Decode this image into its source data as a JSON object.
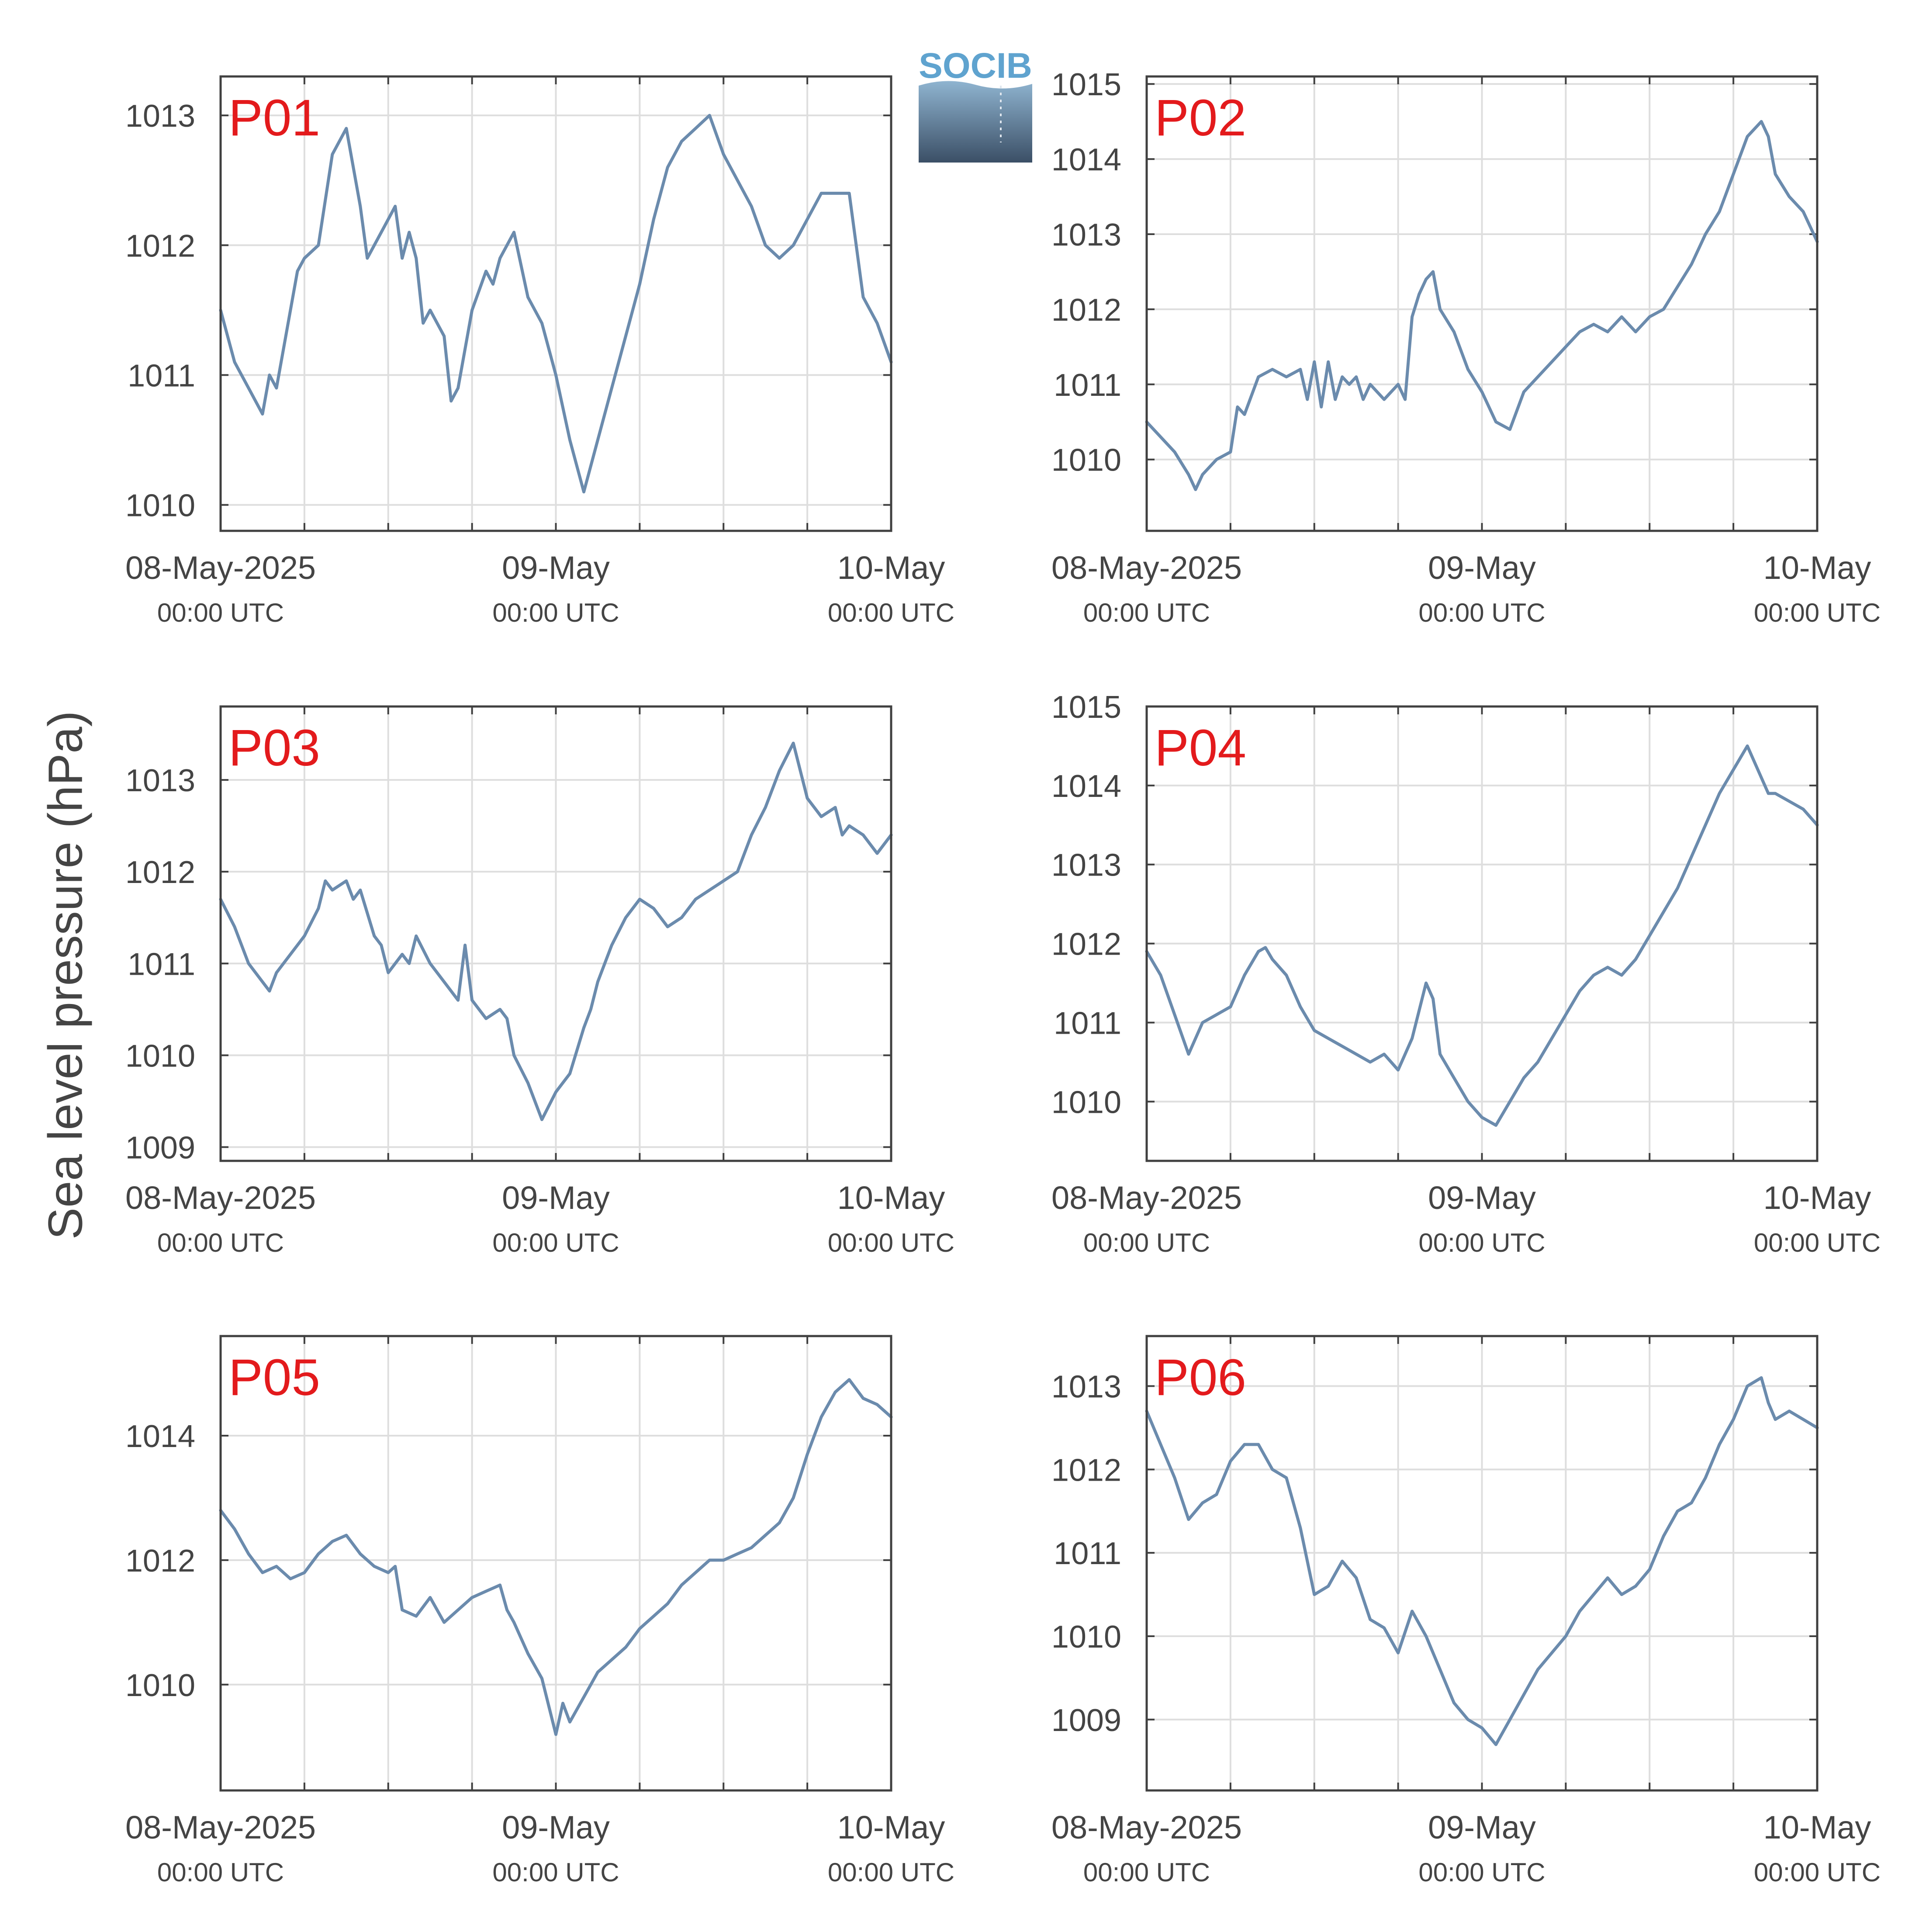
{
  "ylabel": "Sea level pressure (hPa)",
  "logo_text": "SOCIB",
  "colors": {
    "line": "#6b8bad",
    "station_label": "#e31a1c",
    "axis": "#404040",
    "grid": "#dedede",
    "text": "#444444"
  },
  "chart_data": [
    {
      "type": "line",
      "title": "P01",
      "x_ticks": [
        {
          "x": 0,
          "date": "08-May-2025",
          "time": "00:00 UTC"
        },
        {
          "x": 24,
          "date": "09-May",
          "time": "00:00 UTC"
        },
        {
          "x": 48,
          "date": "10-May",
          "time": "00:00 UTC"
        }
      ],
      "xlim": [
        0,
        48
      ],
      "ylim": [
        1009.8,
        1013.3
      ],
      "yticks": [
        1010,
        1011,
        1012,
        1013
      ],
      "grid": true,
      "x": [
        0,
        1,
        2,
        3,
        3.5,
        4,
        4.5,
        5,
        5.5,
        6,
        7,
        8,
        9,
        10,
        10.5,
        11,
        12,
        12.5,
        13,
        13.5,
        14,
        14.5,
        15,
        16,
        16.5,
        17,
        18,
        19,
        19.5,
        20,
        21,
        22,
        23,
        24,
        25,
        26,
        27,
        28,
        29,
        30,
        31,
        32,
        33,
        34,
        35,
        36,
        37,
        38,
        39,
        40,
        41,
        42,
        43,
        44,
        45,
        46,
        47,
        48
      ],
      "y": [
        1011.5,
        1011.1,
        1010.9,
        1010.7,
        1011.0,
        1010.9,
        1011.2,
        1011.5,
        1011.8,
        1011.9,
        1012.0,
        1012.7,
        1012.9,
        1012.3,
        1011.9,
        1012.0,
        1012.2,
        1012.3,
        1011.9,
        1012.1,
        1011.9,
        1011.4,
        1011.5,
        1011.3,
        1010.8,
        1010.9,
        1011.5,
        1011.8,
        1011.7,
        1011.9,
        1012.1,
        1011.6,
        1011.4,
        1011.0,
        1010.5,
        1010.1,
        1010.5,
        1010.9,
        1011.3,
        1011.7,
        1012.2,
        1012.6,
        1012.8,
        1012.9,
        1013.0,
        1012.7,
        1012.5,
        1012.3,
        1012.0,
        1011.9,
        1012.0,
        1012.2,
        1012.4,
        1012.4,
        1012.4,
        1011.6,
        1011.4,
        1011.1
      ]
    },
    {
      "type": "line",
      "title": "P02",
      "x_ticks": [
        {
          "x": 0,
          "date": "08-May-2025",
          "time": "00:00 UTC"
        },
        {
          "x": 24,
          "date": "09-May",
          "time": "00:00 UTC"
        },
        {
          "x": 48,
          "date": "10-May",
          "time": "00:00 UTC"
        }
      ],
      "xlim": [
        0,
        48
      ],
      "ylim": [
        1009.05,
        1015.1
      ],
      "yticks": [
        1010,
        1011,
        1012,
        1013,
        1014,
        1015
      ],
      "grid": true,
      "x": [
        0,
        1,
        2,
        3,
        3.5,
        4,
        5,
        6,
        6.5,
        7,
        8,
        9,
        10,
        11,
        11.5,
        12,
        12.5,
        13,
        13.5,
        14,
        14.5,
        15,
        15.5,
        16,
        17,
        18,
        18.5,
        19,
        19.5,
        20,
        20.5,
        21,
        22,
        23,
        24,
        25,
        26,
        27,
        28,
        29,
        30,
        31,
        32,
        33,
        34,
        35,
        36,
        37,
        38,
        39,
        40,
        41,
        42,
        43,
        44,
        44.5,
        45,
        46,
        47,
        48
      ],
      "y": [
        1010.5,
        1010.3,
        1010.1,
        1009.8,
        1009.6,
        1009.8,
        1010.0,
        1010.1,
        1010.7,
        1010.6,
        1011.1,
        1011.2,
        1011.1,
        1011.2,
        1010.8,
        1011.3,
        1010.7,
        1011.3,
        1010.8,
        1011.1,
        1011.0,
        1011.1,
        1010.8,
        1011.0,
        1010.8,
        1011.0,
        1010.8,
        1011.9,
        1012.2,
        1012.4,
        1012.5,
        1012.0,
        1011.7,
        1011.2,
        1010.9,
        1010.5,
        1010.4,
        1010.9,
        1011.1,
        1011.3,
        1011.5,
        1011.7,
        1011.8,
        1011.7,
        1011.9,
        1011.7,
        1011.9,
        1012.0,
        1012.3,
        1012.6,
        1013.0,
        1013.3,
        1013.8,
        1014.3,
        1014.5,
        1014.3,
        1013.8,
        1013.5,
        1013.3,
        1012.9
      ]
    },
    {
      "type": "line",
      "title": "P03",
      "x_ticks": [
        {
          "x": 0,
          "date": "08-May-2025",
          "time": "00:00 UTC"
        },
        {
          "x": 24,
          "date": "09-May",
          "time": "00:00 UTC"
        },
        {
          "x": 48,
          "date": "10-May",
          "time": "00:00 UTC"
        }
      ],
      "xlim": [
        0,
        48
      ],
      "ylim": [
        1008.85,
        1013.8
      ],
      "yticks": [
        1009,
        1010,
        1011,
        1012,
        1013
      ],
      "grid": true,
      "x": [
        0,
        1,
        2,
        3,
        3.5,
        4,
        5,
        6,
        7,
        7.5,
        8,
        9,
        9.5,
        10,
        11,
        11.5,
        12,
        13,
        13.5,
        14,
        15,
        16,
        17,
        17.5,
        18,
        19,
        20,
        20.5,
        21,
        22,
        23,
        24,
        25,
        26,
        26.5,
        27,
        28,
        29,
        30,
        31,
        32,
        33,
        34,
        35,
        36,
        37,
        38,
        39,
        40,
        41,
        42,
        43,
        44,
        44.5,
        45,
        46,
        47,
        48
      ],
      "y": [
        1011.7,
        1011.4,
        1011.0,
        1010.8,
        1010.7,
        1010.9,
        1011.1,
        1011.3,
        1011.6,
        1011.9,
        1011.8,
        1011.9,
        1011.7,
        1011.8,
        1011.3,
        1011.2,
        1010.9,
        1011.1,
        1011.0,
        1011.3,
        1011.0,
        1010.8,
        1010.6,
        1011.2,
        1010.6,
        1010.4,
        1010.5,
        1010.4,
        1010.0,
        1009.7,
        1009.3,
        1009.6,
        1009.8,
        1010.3,
        1010.5,
        1010.8,
        1011.2,
        1011.5,
        1011.7,
        1011.6,
        1011.4,
        1011.5,
        1011.7,
        1011.8,
        1011.9,
        1012.0,
        1012.4,
        1012.7,
        1013.1,
        1013.4,
        1012.8,
        1012.6,
        1012.7,
        1012.4,
        1012.5,
        1012.4,
        1012.2,
        1012.4
      ]
    },
    {
      "type": "line",
      "title": "P04",
      "x_ticks": [
        {
          "x": 0,
          "date": "08-May-2025",
          "time": "00:00 UTC"
        },
        {
          "x": 24,
          "date": "09-May",
          "time": "00:00 UTC"
        },
        {
          "x": 48,
          "date": "10-May",
          "time": "00:00 UTC"
        }
      ],
      "xlim": [
        0,
        48
      ],
      "ylim": [
        1009.25,
        1015.0
      ],
      "yticks": [
        1010,
        1011,
        1012,
        1013,
        1014,
        1015
      ],
      "grid": true,
      "x": [
        0,
        1,
        2,
        3,
        4,
        5,
        6,
        7,
        8,
        8.5,
        9,
        10,
        11,
        12,
        13,
        14,
        15,
        16,
        17,
        18,
        19,
        20,
        20.5,
        21,
        22,
        23,
        24,
        25,
        26,
        27,
        28,
        29,
        30,
        31,
        32,
        33,
        34,
        35,
        36,
        37,
        38,
        39,
        40,
        41,
        42,
        43,
        44,
        44.5,
        45,
        46,
        47,
        48
      ],
      "y": [
        1011.9,
        1011.6,
        1011.1,
        1010.6,
        1011.0,
        1011.1,
        1011.2,
        1011.6,
        1011.9,
        1011.95,
        1011.8,
        1011.6,
        1011.2,
        1010.9,
        1010.8,
        1010.7,
        1010.6,
        1010.5,
        1010.6,
        1010.4,
        1010.8,
        1011.5,
        1011.3,
        1010.6,
        1010.3,
        1010.0,
        1009.8,
        1009.7,
        1010.0,
        1010.3,
        1010.5,
        1010.8,
        1011.1,
        1011.4,
        1011.6,
        1011.7,
        1011.6,
        1011.8,
        1012.1,
        1012.4,
        1012.7,
        1013.1,
        1013.5,
        1013.9,
        1014.2,
        1014.5,
        1014.1,
        1013.9,
        1013.9,
        1013.8,
        1013.7,
        1013.5
      ]
    },
    {
      "type": "line",
      "title": "P05",
      "x_ticks": [
        {
          "x": 0,
          "date": "08-May-2025",
          "time": "00:00 UTC"
        },
        {
          "x": 24,
          "date": "09-May",
          "time": "00:00 UTC"
        },
        {
          "x": 48,
          "date": "10-May",
          "time": "00:00 UTC"
        }
      ],
      "xlim": [
        0,
        48
      ],
      "ylim": [
        1008.3,
        1015.6
      ],
      "yticks": [
        1010,
        1012,
        1014
      ],
      "grid": true,
      "x": [
        0,
        1,
        2,
        3,
        4,
        5,
        6,
        7,
        8,
        9,
        10,
        11,
        12,
        12.5,
        13,
        14,
        15,
        16,
        17,
        18,
        19,
        20,
        20.5,
        21,
        22,
        23,
        24,
        24.5,
        25,
        26,
        27,
        28,
        29,
        30,
        31,
        32,
        33,
        34,
        35,
        36,
        37,
        38,
        39,
        40,
        41,
        42,
        43,
        44,
        45,
        46,
        47,
        48
      ],
      "y": [
        1012.8,
        1012.5,
        1012.1,
        1011.8,
        1011.9,
        1011.7,
        1011.8,
        1012.1,
        1012.3,
        1012.4,
        1012.1,
        1011.9,
        1011.8,
        1011.9,
        1011.2,
        1011.1,
        1011.4,
        1011.0,
        1011.2,
        1011.4,
        1011.5,
        1011.6,
        1011.2,
        1011.0,
        1010.5,
        1010.1,
        1009.2,
        1009.7,
        1009.4,
        1009.8,
        1010.2,
        1010.4,
        1010.6,
        1010.9,
        1011.1,
        1011.3,
        1011.6,
        1011.8,
        1012.0,
        1012.0,
        1012.1,
        1012.2,
        1012.4,
        1012.6,
        1013.0,
        1013.7,
        1014.3,
        1014.7,
        1014.9,
        1014.6,
        1014.5,
        1014.3
      ]
    },
    {
      "type": "line",
      "title": "P06",
      "x_ticks": [
        {
          "x": 0,
          "date": "08-May-2025",
          "time": "00:00 UTC"
        },
        {
          "x": 24,
          "date": "09-May",
          "time": "00:00 UTC"
        },
        {
          "x": 48,
          "date": "10-May",
          "time": "00:00 UTC"
        }
      ],
      "xlim": [
        0,
        48
      ],
      "ylim": [
        1008.15,
        1013.6
      ],
      "yticks": [
        1009,
        1010,
        1011,
        1012,
        1013
      ],
      "grid": true,
      "x": [
        0,
        1,
        2,
        3,
        4,
        5,
        6,
        7,
        8,
        9,
        10,
        11,
        12,
        13,
        14,
        15,
        16,
        17,
        18,
        19,
        20,
        21,
        22,
        23,
        24,
        25,
        26,
        27,
        28,
        29,
        30,
        31,
        32,
        33,
        34,
        35,
        36,
        37,
        38,
        39,
        40,
        41,
        42,
        43,
        44,
        44.5,
        45,
        46,
        47,
        48
      ],
      "y": [
        1012.7,
        1012.3,
        1011.9,
        1011.4,
        1011.6,
        1011.7,
        1012.1,
        1012.3,
        1012.3,
        1012.0,
        1011.9,
        1011.3,
        1010.5,
        1010.6,
        1010.9,
        1010.7,
        1010.2,
        1010.1,
        1009.8,
        1010.3,
        1010.0,
        1009.6,
        1009.2,
        1009.0,
        1008.9,
        1008.7,
        1009.0,
        1009.3,
        1009.6,
        1009.8,
        1010.0,
        1010.3,
        1010.5,
        1010.7,
        1010.5,
        1010.6,
        1010.8,
        1011.2,
        1011.5,
        1011.6,
        1011.9,
        1012.3,
        1012.6,
        1013.0,
        1013.1,
        1012.8,
        1012.6,
        1012.7,
        1012.6,
        1012.5
      ]
    }
  ]
}
